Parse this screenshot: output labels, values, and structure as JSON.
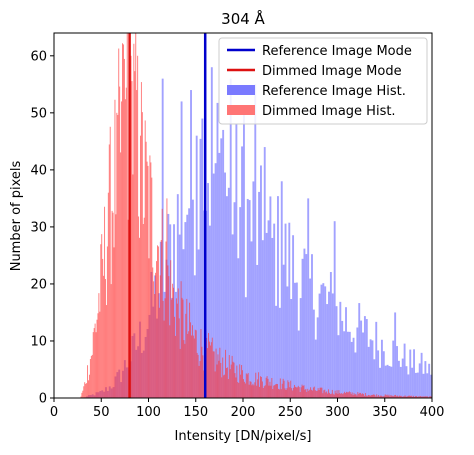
{
  "chart_data": {
    "type": "bar",
    "title": "304 Å",
    "xlabel": "Intensity [DN/pixel/s]",
    "ylabel": "Number of pixels",
    "xlim": [
      0,
      400
    ],
    "ylim": [
      0,
      64
    ],
    "xticks": [
      0,
      50,
      100,
      150,
      200,
      250,
      300,
      350,
      400
    ],
    "yticks": [
      0,
      10,
      20,
      30,
      40,
      50,
      60
    ],
    "grid": false,
    "legend_position": "top-right",
    "legend": [
      {
        "label": "Reference Image Mode",
        "kind": "line",
        "color": "#0000cc"
      },
      {
        "label": "Dimmed Image Mode",
        "kind": "line",
        "color": "#dd1111"
      },
      {
        "label": "Reference Image Hist.",
        "kind": "patch",
        "color": "#7a7aff"
      },
      {
        "label": "Dimmed Image Hist.",
        "kind": "patch",
        "color": "#ff7575"
      }
    ],
    "vlines": [
      {
        "name": "Reference Image Mode",
        "x": 160,
        "color": "#0000cc"
      },
      {
        "name": "Dimmed Image Mode",
        "x": 80,
        "color": "#dd1111"
      }
    ],
    "series": [
      {
        "name": "Reference Image Hist.",
        "color": "#5555ff",
        "opacity": 0.55,
        "bin_width": 2,
        "bins": [
          {
            "x": 30,
            "y": 0
          },
          {
            "x": 50,
            "y": 1
          },
          {
            "x": 60,
            "y": 2
          },
          {
            "x": 70,
            "y": 4
          },
          {
            "x": 80,
            "y": 7
          },
          {
            "x": 90,
            "y": 10
          },
          {
            "x": 100,
            "y": 14
          },
          {
            "x": 110,
            "y": 19
          },
          {
            "x": 120,
            "y": 24
          },
          {
            "x": 130,
            "y": 30
          },
          {
            "x": 140,
            "y": 35
          },
          {
            "x": 150,
            "y": 38
          },
          {
            "x": 160,
            "y": 41
          },
          {
            "x": 170,
            "y": 40
          },
          {
            "x": 180,
            "y": 38
          },
          {
            "x": 190,
            "y": 35
          },
          {
            "x": 200,
            "y": 32
          },
          {
            "x": 220,
            "y": 28
          },
          {
            "x": 240,
            "y": 25
          },
          {
            "x": 260,
            "y": 21
          },
          {
            "x": 280,
            "y": 18
          },
          {
            "x": 300,
            "y": 15
          },
          {
            "x": 320,
            "y": 12
          },
          {
            "x": 340,
            "y": 10
          },
          {
            "x": 360,
            "y": 8
          },
          {
            "x": 380,
            "y": 6
          },
          {
            "x": 400,
            "y": 5
          }
        ],
        "peaks": [
          {
            "x": 114,
            "y": 56
          },
          {
            "x": 134,
            "y": 52
          },
          {
            "x": 144,
            "y": 54
          },
          {
            "x": 150,
            "y": 46
          },
          {
            "x": 156,
            "y": 49
          },
          {
            "x": 166,
            "y": 58
          },
          {
            "x": 178,
            "y": 47
          },
          {
            "x": 186,
            "y": 56
          },
          {
            "x": 200,
            "y": 50
          },
          {
            "x": 212,
            "y": 55
          },
          {
            "x": 222,
            "y": 44
          },
          {
            "x": 240,
            "y": 38
          },
          {
            "x": 268,
            "y": 35
          },
          {
            "x": 296,
            "y": 31
          },
          {
            "x": 360,
            "y": 15
          },
          {
            "x": 396,
            "y": 6
          }
        ]
      },
      {
        "name": "Dimmed Image Hist.",
        "color": "#ff3333",
        "opacity": 0.65,
        "bin_width": 1,
        "bins": [
          {
            "x": 28,
            "y": 0
          },
          {
            "x": 32,
            "y": 2
          },
          {
            "x": 40,
            "y": 8
          },
          {
            "x": 50,
            "y": 20
          },
          {
            "x": 60,
            "y": 34
          },
          {
            "x": 70,
            "y": 44
          },
          {
            "x": 78,
            "y": 50
          },
          {
            "x": 85,
            "y": 48
          },
          {
            "x": 95,
            "y": 38
          },
          {
            "x": 105,
            "y": 30
          },
          {
            "x": 115,
            "y": 24
          },
          {
            "x": 125,
            "y": 18
          },
          {
            "x": 135,
            "y": 14
          },
          {
            "x": 150,
            "y": 10
          },
          {
            "x": 170,
            "y": 7
          },
          {
            "x": 190,
            "y": 5
          },
          {
            "x": 210,
            "y": 3.5
          },
          {
            "x": 240,
            "y": 2.5
          },
          {
            "x": 270,
            "y": 1.5
          },
          {
            "x": 300,
            "y": 1
          },
          {
            "x": 340,
            "y": 0.5
          },
          {
            "x": 400,
            "y": 0.2
          }
        ],
        "peaks": [
          {
            "x": 73,
            "y": 62
          },
          {
            "x": 77,
            "y": 64
          },
          {
            "x": 81,
            "y": 60
          },
          {
            "x": 87,
            "y": 54
          },
          {
            "x": 91,
            "y": 46
          },
          {
            "x": 66,
            "y": 50
          },
          {
            "x": 57,
            "y": 36
          },
          {
            "x": 119,
            "y": 35
          }
        ]
      }
    ]
  }
}
